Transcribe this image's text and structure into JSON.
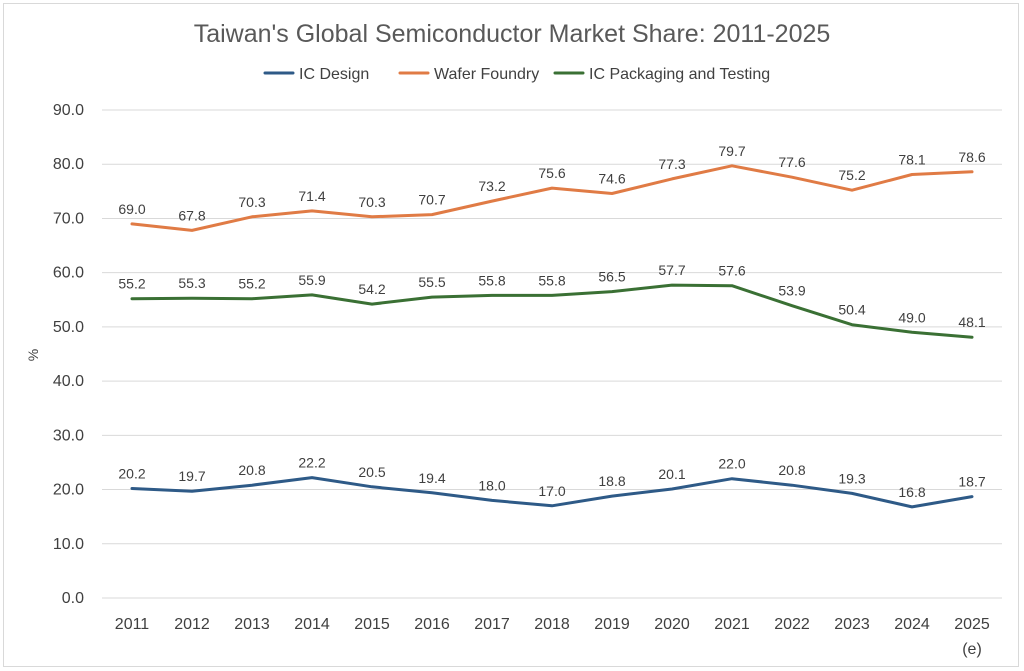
{
  "chart_data": {
    "type": "line",
    "title": "Taiwan's Global Semiconductor Market Share: 2011-2025",
    "xlabel": "",
    "ylabel": "%",
    "ylim": [
      0,
      90
    ],
    "yticks": [
      "0.0",
      "10.0",
      "20.0",
      "30.0",
      "40.0",
      "50.0",
      "60.0",
      "70.0",
      "80.0",
      "90.0"
    ],
    "categories": [
      "2011",
      "2012",
      "2013",
      "2014",
      "2015",
      "2016",
      "2017",
      "2018",
      "2019",
      "2020",
      "2021",
      "2022",
      "2023",
      "2024",
      "2025"
    ],
    "category_note": "(e)",
    "grid": true,
    "legend_position": "top",
    "series": [
      {
        "name": "IC Design",
        "color": "#2e5a87",
        "values": [
          20.2,
          19.7,
          20.8,
          22.2,
          20.5,
          19.4,
          18.0,
          17.0,
          18.8,
          20.1,
          22.0,
          20.8,
          19.3,
          16.8,
          18.7
        ],
        "labels": [
          "20.2",
          "19.7",
          "20.8",
          "22.2",
          "20.5",
          "19.4",
          "18.0",
          "17.0",
          "18.8",
          "20.1",
          "22.0",
          "20.8",
          "19.3",
          "16.8",
          "18.7"
        ]
      },
      {
        "name": "Wafer Foundry",
        "color": "#e07b45",
        "values": [
          69.0,
          67.8,
          70.3,
          71.4,
          70.3,
          70.7,
          73.2,
          75.6,
          74.6,
          77.3,
          79.7,
          77.6,
          75.2,
          78.1,
          78.6
        ],
        "labels": [
          "69.0",
          "67.8",
          "70.3",
          "71.4",
          "70.3",
          "70.7",
          "73.2",
          "75.6",
          "74.6",
          "77.3",
          "79.7",
          "77.6",
          "75.2",
          "78.1",
          "78.6"
        ]
      },
      {
        "name": "IC Packaging and Testing",
        "color": "#3a7034",
        "values": [
          55.2,
          55.3,
          55.2,
          55.9,
          54.2,
          55.5,
          55.8,
          55.8,
          56.5,
          57.7,
          57.6,
          53.9,
          50.4,
          49.0,
          48.1
        ],
        "labels": [
          "55.2",
          "55.3",
          "55.2",
          "55.9",
          "54.2",
          "55.5",
          "55.8",
          "55.8",
          "56.5",
          "57.7",
          "57.6",
          "53.9",
          "50.4",
          "49.0",
          "48.1"
        ]
      }
    ]
  }
}
